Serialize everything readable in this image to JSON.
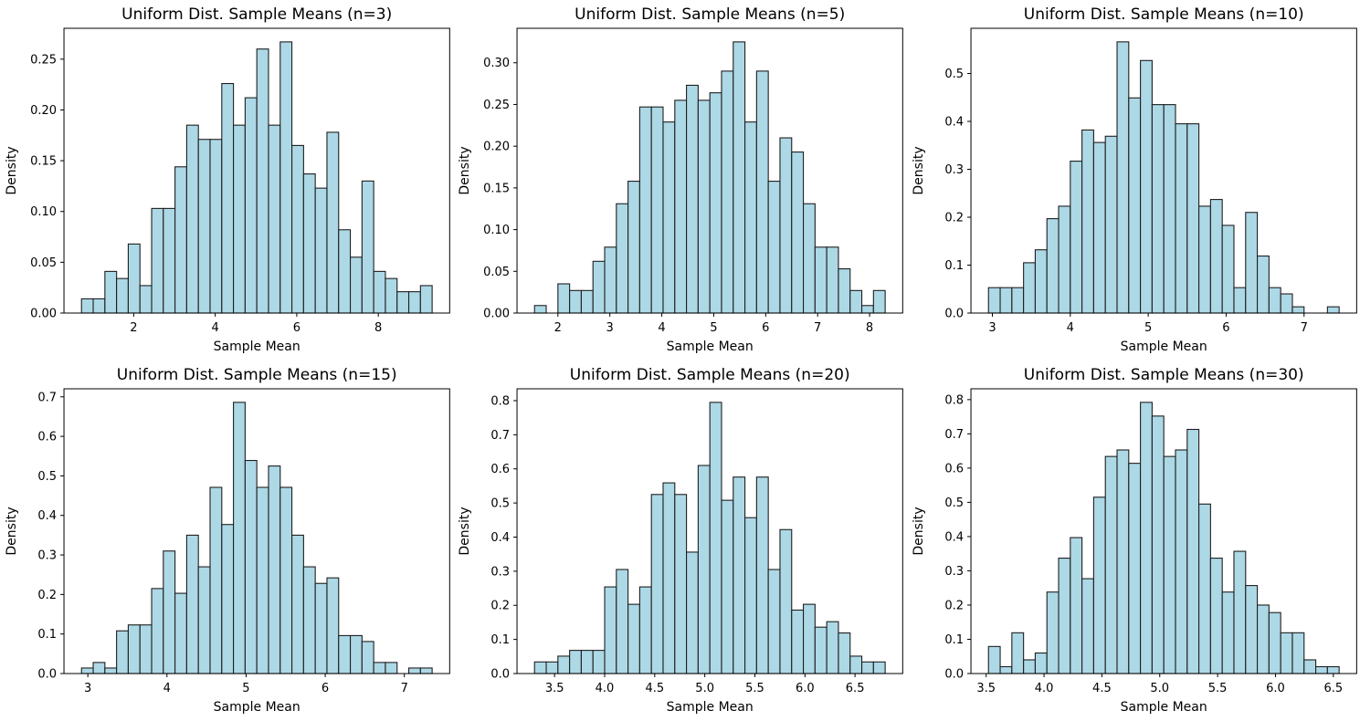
{
  "figure": {
    "background": "#ffffff",
    "bar_fill": "#ADD8E6",
    "bar_edge": "#1f1f1f",
    "spine_color": "#000000",
    "text_color": "#000000"
  },
  "chart_data": [
    {
      "type": "bar",
      "title": "Uniform Dist. Sample Means (n=3)",
      "xlabel": "Sample Mean",
      "ylabel": "Density",
      "grid": false,
      "legend": null,
      "bin_start": 0.72,
      "bin_width": 0.2867,
      "values": [
        0.014,
        0.014,
        0.041,
        0.034,
        0.068,
        0.027,
        0.103,
        0.103,
        0.144,
        0.185,
        0.171,
        0.171,
        0.226,
        0.185,
        0.212,
        0.26,
        0.185,
        0.267,
        0.165,
        0.137,
        0.123,
        0.178,
        0.082,
        0.055,
        0.13,
        0.041,
        0.034,
        0.021,
        0.021,
        0.027
      ],
      "xticks": [
        2,
        4,
        6,
        8
      ],
      "xtick_labels": [
        "2",
        "4",
        "6",
        "8"
      ],
      "yticks": [
        0.0,
        0.05,
        0.1,
        0.15,
        0.2,
        0.25
      ],
      "ytick_labels": [
        "0.00",
        "0.05",
        "0.10",
        "0.15",
        "0.20",
        "0.25"
      ],
      "xlim": [
        0.29,
        9.751
      ],
      "ylim": [
        0,
        0.2804
      ]
    },
    {
      "type": "bar",
      "title": "Uniform Dist. Sample Means (n=5)",
      "xlabel": "Sample Mean",
      "ylabel": "Density",
      "grid": false,
      "legend": null,
      "bin_start": 1.55,
      "bin_width": 0.225,
      "values": [
        0.009,
        0,
        0.035,
        0.027,
        0.027,
        0.062,
        0.079,
        0.131,
        0.158,
        0.247,
        0.247,
        0.229,
        0.255,
        0.273,
        0.255,
        0.264,
        0.29,
        0.325,
        0.229,
        0.29,
        0.158,
        0.21,
        0.193,
        0.131,
        0.079,
        0.079,
        0.053,
        0.027,
        0.009,
        0.027
      ],
      "xticks": [
        2,
        3,
        4,
        5,
        6,
        7,
        8
      ],
      "xtick_labels": [
        "2",
        "3",
        "4",
        "5",
        "6",
        "7",
        "8"
      ],
      "yticks": [
        0.0,
        0.05,
        0.1,
        0.15,
        0.2,
        0.25,
        0.3
      ],
      "ytick_labels": [
        "0.00",
        "0.05",
        "0.10",
        "0.15",
        "0.20",
        "0.25",
        "0.30"
      ],
      "xlim": [
        1.2125,
        8.6375
      ],
      "ylim": [
        0,
        0.3413
      ]
    },
    {
      "type": "bar",
      "title": "Uniform Dist. Sample Means (n=10)",
      "xlabel": "Sample Mean",
      "ylabel": "Density",
      "grid": false,
      "legend": null,
      "bin_start": 2.95,
      "bin_width": 0.15,
      "values": [
        0.053,
        0.053,
        0.053,
        0.105,
        0.132,
        0.197,
        0.223,
        0.317,
        0.382,
        0.356,
        0.369,
        0.566,
        0.449,
        0.527,
        0.435,
        0.435,
        0.395,
        0.395,
        0.223,
        0.237,
        0.183,
        0.053,
        0.21,
        0.119,
        0.053,
        0.04,
        0.013,
        0,
        0,
        0.013
      ],
      "xticks": [
        3,
        4,
        5,
        6,
        7
      ],
      "xtick_labels": [
        "3",
        "4",
        "5",
        "6",
        "7"
      ],
      "yticks": [
        0.0,
        0.1,
        0.2,
        0.3,
        0.4,
        0.5
      ],
      "ytick_labels": [
        "0.0",
        "0.1",
        "0.2",
        "0.3",
        "0.4",
        "0.5"
      ],
      "xlim": [
        2.725,
        7.675
      ],
      "ylim": [
        0,
        0.5943
      ]
    },
    {
      "type": "bar",
      "title": "Uniform Dist. Sample Means (n=15)",
      "xlabel": "Sample Mean",
      "ylabel": "Density",
      "grid": false,
      "legend": null,
      "bin_start": 2.92,
      "bin_width": 0.1477,
      "values": [
        0.014,
        0.028,
        0.014,
        0.108,
        0.123,
        0.123,
        0.215,
        0.31,
        0.203,
        0.35,
        0.27,
        0.471,
        0.377,
        0.686,
        0.539,
        0.471,
        0.525,
        0.471,
        0.35,
        0.27,
        0.228,
        0.242,
        0.096,
        0.096,
        0.081,
        0.028,
        0.028,
        0,
        0.014,
        0.014
      ],
      "xticks": [
        3,
        4,
        5,
        6,
        7
      ],
      "xtick_labels": [
        "3",
        "4",
        "5",
        "6",
        "7"
      ],
      "yticks": [
        0.0,
        0.1,
        0.2,
        0.3,
        0.4,
        0.5,
        0.6,
        0.7
      ],
      "ytick_labels": [
        "0.0",
        "0.1",
        "0.2",
        "0.3",
        "0.4",
        "0.5",
        "0.6",
        "0.7"
      ],
      "xlim": [
        2.6985,
        7.5725
      ],
      "ylim": [
        0,
        0.7203
      ]
    },
    {
      "type": "bar",
      "title": "Uniform Dist. Sample Means (n=20)",
      "xlabel": "Sample Mean",
      "ylabel": "Density",
      "grid": false,
      "legend": null,
      "bin_start": 3.3,
      "bin_width": 0.1167,
      "values": [
        0.034,
        0.034,
        0.051,
        0.068,
        0.068,
        0.068,
        0.254,
        0.305,
        0.203,
        0.254,
        0.525,
        0.559,
        0.525,
        0.356,
        0.61,
        0.795,
        0.508,
        0.576,
        0.457,
        0.576,
        0.305,
        0.422,
        0.186,
        0.203,
        0.136,
        0.152,
        0.119,
        0.051,
        0.034,
        0.034
      ],
      "xticks": [
        3.5,
        4.0,
        4.5,
        5.0,
        5.5,
        6.0,
        6.5
      ],
      "xtick_labels": [
        "3.5",
        "4.0",
        "4.5",
        "5.0",
        "5.5",
        "6.0",
        "6.5"
      ],
      "yticks": [
        0.0,
        0.1,
        0.2,
        0.3,
        0.4,
        0.5,
        0.6,
        0.7,
        0.8
      ],
      "ytick_labels": [
        "0.0",
        "0.1",
        "0.2",
        "0.3",
        "0.4",
        "0.5",
        "0.6",
        "0.7",
        "0.8"
      ],
      "xlim": [
        3.125,
        6.976
      ],
      "ylim": [
        0,
        0.8348
      ]
    },
    {
      "type": "bar",
      "title": "Uniform Dist. Sample Means (n=30)",
      "xlabel": "Sample Mean",
      "ylabel": "Density",
      "grid": false,
      "legend": null,
      "bin_start": 3.52,
      "bin_width": 0.101,
      "values": [
        0.079,
        0.02,
        0.119,
        0.04,
        0.06,
        0.238,
        0.337,
        0.397,
        0.277,
        0.515,
        0.634,
        0.653,
        0.614,
        0.792,
        0.752,
        0.634,
        0.653,
        0.713,
        0.495,
        0.337,
        0.238,
        0.357,
        0.257,
        0.2,
        0.178,
        0.119,
        0.119,
        0.04,
        0.02,
        0.02
      ],
      "xticks": [
        3.5,
        4.0,
        4.5,
        5.0,
        5.5,
        6.0,
        6.5
      ],
      "xtick_labels": [
        "3.5",
        "4.0",
        "4.5",
        "5.0",
        "5.5",
        "6.0",
        "6.5"
      ],
      "yticks": [
        0.0,
        0.1,
        0.2,
        0.3,
        0.4,
        0.5,
        0.6,
        0.7,
        0.8
      ],
      "ytick_labels": [
        "0.0",
        "0.1",
        "0.2",
        "0.3",
        "0.4",
        "0.5",
        "0.6",
        "0.7",
        "0.8"
      ],
      "xlim": [
        3.3685,
        6.7015
      ],
      "ylim": [
        0,
        0.8316
      ]
    }
  ]
}
